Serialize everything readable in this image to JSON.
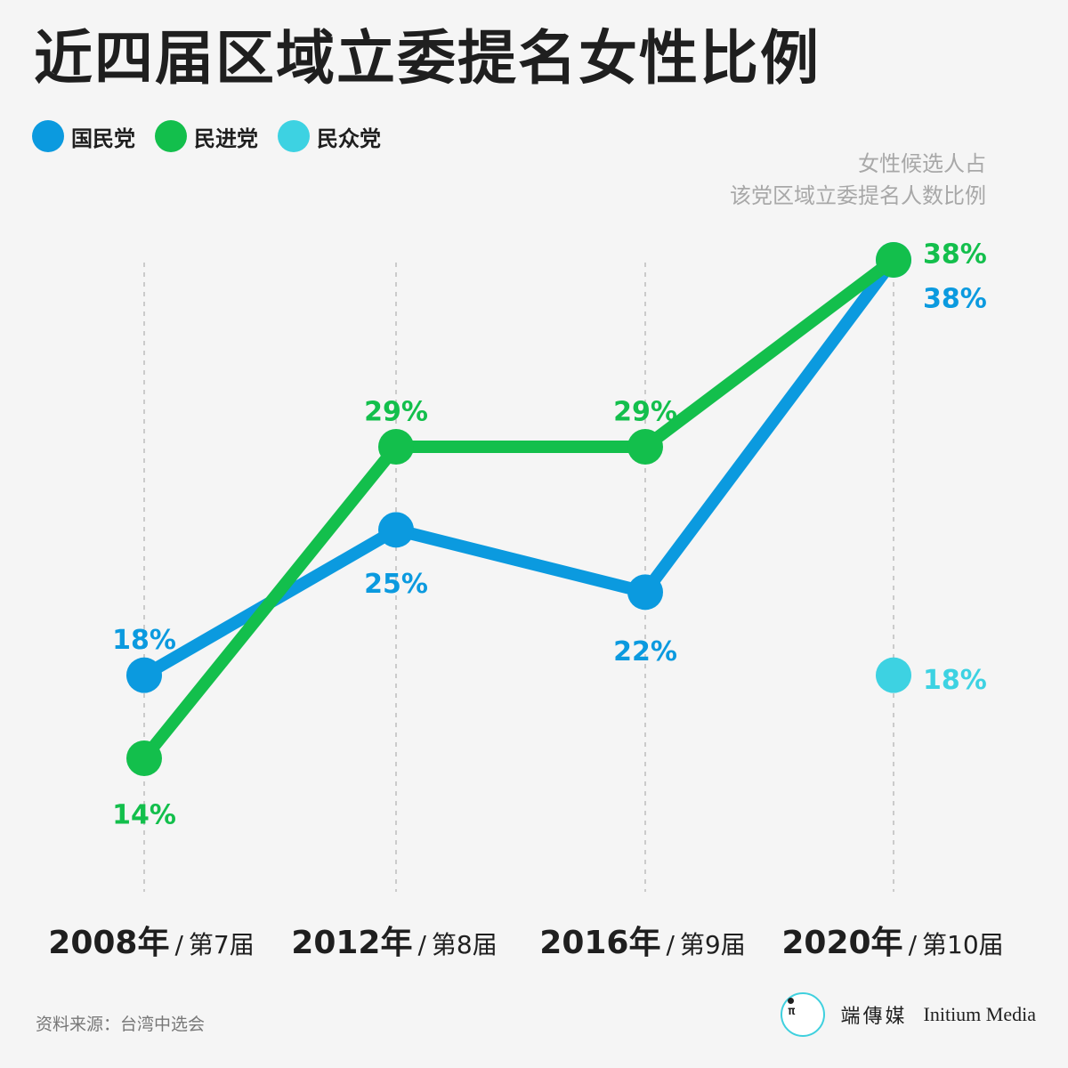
{
  "title": "近四届区域立委提名女性比例",
  "legend": [
    {
      "label": "国民党",
      "color": "#0b9adf"
    },
    {
      "label": "民进党",
      "color": "#13bf4c"
    },
    {
      "label": "民众党",
      "color": "#3dd2e2"
    }
  ],
  "note": {
    "line1": "女性候选人占",
    "line2": "该党区域立委提名人数比例"
  },
  "x_axis": [
    {
      "year": "2008年",
      "sep": "/",
      "term": "第7届"
    },
    {
      "year": "2012年",
      "sep": "/",
      "term": "第8届"
    },
    {
      "year": "2016年",
      "sep": "/",
      "term": "第9届"
    },
    {
      "year": "2020年",
      "sep": "/",
      "term": "第10届"
    }
  ],
  "source": "资料来源：台湾中选会",
  "brand": {
    "cn": "端傳媒",
    "en": "Initium Media",
    "logo_glyph": "π"
  },
  "chart_data": {
    "type": "line",
    "categories": [
      "2008",
      "2012",
      "2016",
      "2020"
    ],
    "ylim": [
      10,
      40
    ],
    "grid": "vertical dashed lines",
    "series": [
      {
        "name": "国民党",
        "color": "#0b9adf",
        "values": [
          18,
          25,
          22,
          38
        ],
        "labels": [
          "18%",
          "25%",
          "22%",
          "38%"
        ]
      },
      {
        "name": "民进党",
        "color": "#13bf4c",
        "values": [
          14,
          29,
          29,
          38
        ],
        "labels": [
          "14%",
          "29%",
          "29%",
          "38%"
        ]
      },
      {
        "name": "民众党",
        "color": "#3dd2e2",
        "values": [
          null,
          null,
          null,
          18
        ],
        "labels": [
          "",
          "",
          "",
          "18%"
        ]
      }
    ]
  }
}
